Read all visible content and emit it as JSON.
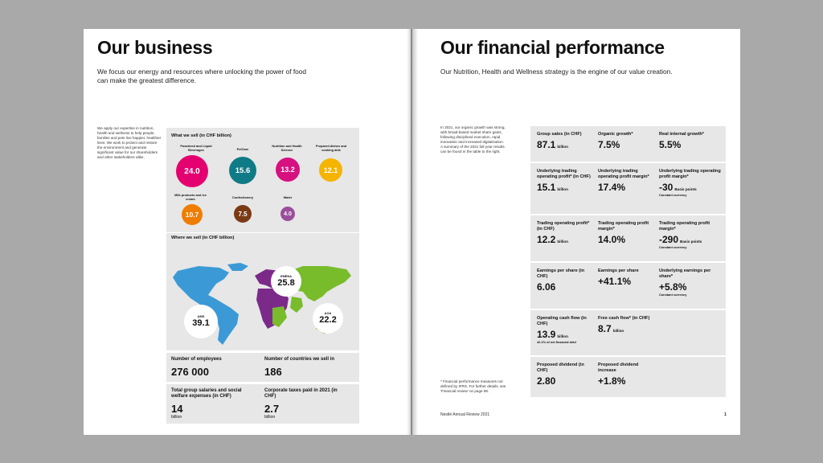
{
  "left": {
    "title": "Our business",
    "intro": "We focus our energy and resources where unlocking the power of food can make the greatest difference.",
    "side_text": "We apply our expertise in nutrition, health and wellness to help people, families and pets live happier, healthier lives. We work to protect and restore the environment and generate significant value for our shareholders and other stakeholders alike.",
    "what_we_sell": {
      "title": "What we sell (in CHF billion)",
      "items": [
        {
          "label": "Powdered and Liquid Beverages",
          "value": "24.0",
          "color": "#e4006f"
        },
        {
          "label": "PetCare",
          "value": "15.6",
          "color": "#0f7b86"
        },
        {
          "label": "Nutrition and Health Science",
          "value": "13.2",
          "color": "#d6107f"
        },
        {
          "label": "Prepared dishes and cooking aids",
          "value": "12.1",
          "color": "#f5b400"
        },
        {
          "label": "Milk products and ice cream",
          "value": "10.7",
          "color": "#ef7d00"
        },
        {
          "label": "Confectionery",
          "value": "7.5",
          "color": "#7a3b14"
        },
        {
          "label": "Water",
          "value": "4.0",
          "color": "#9b4f9b"
        }
      ]
    },
    "where_we_sell": {
      "title": "Where we sell (in CHF billion)",
      "regions": [
        {
          "label": "EMENA",
          "value": "25.8",
          "color": "#7b2a8a"
        },
        {
          "label": "AMS",
          "value": "39.1",
          "color": "#3b9ad6"
        },
        {
          "label": "AOA",
          "value": "22.2",
          "color": "#78bc2c"
        }
      ]
    },
    "stats": [
      {
        "label": "Number of employees",
        "value": "276 000",
        "unit": ""
      },
      {
        "label": "Number of countries we sell in",
        "value": "186",
        "unit": ""
      },
      {
        "label": "Total group salaries and social welfare expenses (in CHF)",
        "value": "14",
        "unit": "billion"
      },
      {
        "label": "Corporate taxes paid in 2021 (in CHF)",
        "value": "2.7",
        "unit": "billion"
      }
    ]
  },
  "right": {
    "title": "Our financial performance",
    "intro": "Our Nutrition, Health and Wellness strategy is the engine of our value creation.",
    "side_text": "In 2021, our organic growth was strong, with broad-based market share gains, following disciplined execution, rapid innovation and increased digitalization. A summary of the 2021 full-year results can be found in the table to the right.",
    "footnote": "* Financial performance measures not defined by IFRS. For further details, see 'Financial review' on page 86.",
    "footer": "Nestlé Annual Review 2021",
    "page_number": "1",
    "metrics": [
      [
        {
          "label": "Group sales (in CHF)",
          "value": "87.1",
          "unit": "billion",
          "note": ""
        },
        {
          "label": "Organic growth*",
          "value": "7.5%",
          "unit": "",
          "note": ""
        },
        {
          "label": "Real internal growth*",
          "value": "5.5%",
          "unit": "",
          "note": ""
        }
      ],
      [
        {
          "label": "Underlying trading operating profit* (in CHF)",
          "value": "15.1",
          "unit": "billion",
          "note": ""
        },
        {
          "label": "Underlying trading operating profit margin*",
          "value": "17.4%",
          "unit": "",
          "note": ""
        },
        {
          "label": "Underlying trading operating profit margin*",
          "value": "-30",
          "unit": "Basis points",
          "note": "Constant currency"
        }
      ],
      [
        {
          "label": "Trading operating profit* (in CHF)",
          "value": "12.2",
          "unit": "billion",
          "note": ""
        },
        {
          "label": "Trading operating profit margin*",
          "value": "14.0%",
          "unit": "",
          "note": ""
        },
        {
          "label": "Trading operating profit margin*",
          "value": "-290",
          "unit": "Basis points",
          "note": "Constant currency"
        }
      ],
      [
        {
          "label": "Earnings per share (in CHF)",
          "value": "6.06",
          "unit": "",
          "note": ""
        },
        {
          "label": "Earnings per share",
          "value": "+41.1%",
          "unit": "",
          "note": ""
        },
        {
          "label": "Underlying earnings per share*",
          "value": "+5.8%",
          "unit": "",
          "note": "Constant currency"
        }
      ],
      [
        {
          "label": "Operating cash flow (in CHF)",
          "value": "13.9",
          "unit": "billion",
          "note": "42.1% of net financial debt"
        },
        {
          "label": "Free cash flow* (in CHF)",
          "value": "8.7",
          "unit": "billion",
          "note": ""
        }
      ],
      [
        {
          "label": "Proposed dividend (in CHF)",
          "value": "2.80",
          "unit": "",
          "note": ""
        },
        {
          "label": "Proposed dividend increase",
          "value": "+1.8%",
          "unit": "",
          "note": ""
        }
      ]
    ]
  }
}
